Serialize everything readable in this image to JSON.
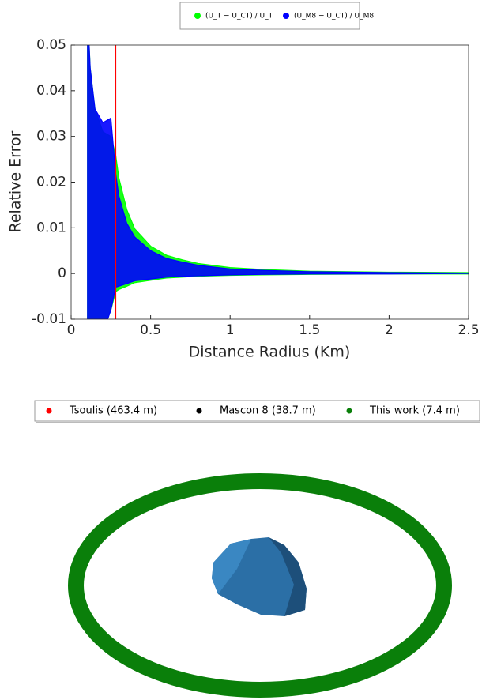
{
  "chart_data": [
    {
      "type": "band",
      "xlabel": "Distance Radius (Km)",
      "ylabel": "Relative Error",
      "x": [
        0.1,
        0.12,
        0.15,
        0.2,
        0.25,
        0.28,
        0.3,
        0.35,
        0.4,
        0.5,
        0.6,
        0.7,
        0.8,
        1.0,
        1.2,
        1.5,
        2.0,
        2.5
      ],
      "series": [
        {
          "name": "(U_T − U_CT) / U_T",
          "color": "#00ff00",
          "values": [
            0.06,
            0.045,
            0.036,
            0.031,
            0.03,
            0.026,
            0.021,
            0.014,
            0.0098,
            0.006,
            0.004,
            0.003,
            0.0022,
            0.0013,
            0.0009,
            0.0005,
            0.0003,
            0.0002
          ],
          "lower": [
            -0.015,
            -0.015,
            -0.014,
            -0.013,
            -0.008,
            -0.004,
            -0.0035,
            -0.0028,
            -0.002,
            -0.0015,
            -0.001,
            -0.0008,
            -0.0006,
            -0.0004,
            -0.0003,
            -0.0002,
            -0.0001,
            -0.0001
          ]
        },
        {
          "name": "(U_M8 − U_CT) / U_M8",
          "color": "#0000ff",
          "values": [
            0.06,
            0.045,
            0.036,
            0.033,
            0.034,
            0.022,
            0.017,
            0.011,
            0.008,
            0.005,
            0.0033,
            0.0025,
            0.0018,
            0.001,
            0.0007,
            0.0004,
            0.0002,
            0.0001
          ],
          "lower": [
            -0.015,
            -0.015,
            -0.014,
            -0.013,
            -0.008,
            -0.003,
            -0.0028,
            -0.0022,
            -0.0016,
            -0.0012,
            -0.0008,
            -0.0006,
            -0.0005,
            -0.0003,
            -0.0002,
            -0.0001,
            -0.0001,
            0
          ]
        }
      ],
      "vlines": [
        {
          "x": 0.28,
          "color": "#ff0000"
        }
      ],
      "xlim": [
        0,
        2.5
      ],
      "xticks": [
        0,
        0.5,
        1,
        1.5,
        2,
        2.5
      ],
      "ylim": [
        -0.01,
        0.05
      ],
      "yticks": [
        -0.01,
        0,
        0.01,
        0.02,
        0.03,
        0.04,
        0.05
      ]
    },
    {
      "type": "orbit",
      "series": [
        {
          "name": "Tsoulis (463.4 m)",
          "color": "#ff0000"
        },
        {
          "name": "Mascon 8 (38.7 m)",
          "color": "#000000"
        },
        {
          "name": "This work (7.4 m)",
          "color": "#0a7f0a"
        }
      ]
    }
  ]
}
